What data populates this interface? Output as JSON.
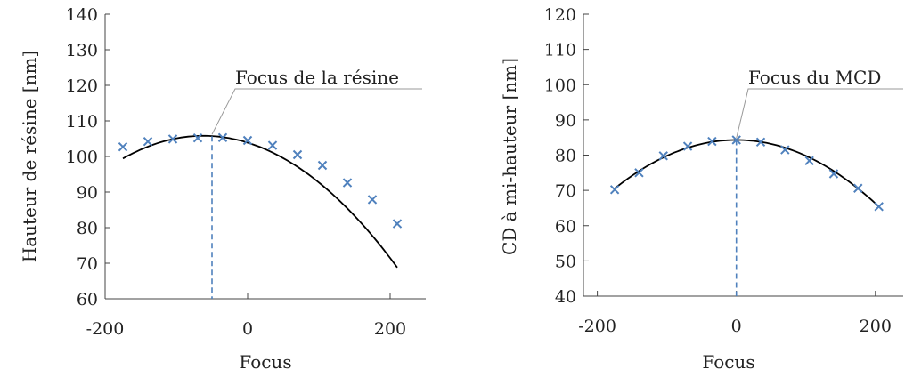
{
  "chart_data": [
    {
      "type": "scatter",
      "xlabel": "Focus",
      "ylabel": "Hauteur de résine [nm]",
      "xlim": [
        -200,
        250
      ],
      "ylim": [
        60,
        140
      ],
      "xticks": [
        -200,
        0,
        200
      ],
      "yticks": [
        60,
        70,
        80,
        90,
        100,
        110,
        120,
        130,
        140
      ],
      "marker_color": "#4f81bd",
      "fit_color": "#000000",
      "series": [
        {
          "marker": "x",
          "x": [
            -175,
            -140,
            -105,
            -70,
            -35,
            0,
            35,
            70,
            105,
            140,
            175,
            210
          ],
          "y": [
            102.7,
            104.2,
            104.9,
            105.2,
            105.3,
            104.5,
            103.1,
            100.5,
            97.5,
            92.6,
            87.9,
            81.1
          ]
        }
      ],
      "fit": {
        "type": "quadratic",
        "a": -0.0005,
        "vertex_x": -62,
        "vertex_y": 105.8
      },
      "annotation": {
        "text": "Focus de la résine",
        "x": -50,
        "y": 105.7
      }
    },
    {
      "type": "scatter",
      "xlabel": "Focus",
      "ylabel": "CD à mi-hauteur [nm]",
      "xlim": [
        -220,
        240
      ],
      "ylim": [
        40,
        120
      ],
      "xticks": [
        -200,
        0,
        200
      ],
      "yticks": [
        40,
        50,
        60,
        70,
        80,
        90,
        100,
        110,
        120
      ],
      "marker_color": "#4f81bd",
      "fit_color": "#000000",
      "series": [
        {
          "marker": "x",
          "x": [
            -175,
            -140,
            -105,
            -70,
            -35,
            0,
            35,
            70,
            105,
            140,
            175,
            205
          ],
          "y": [
            70.2,
            75.0,
            79.8,
            82.5,
            83.9,
            84.3,
            83.7,
            81.5,
            78.4,
            74.7,
            70.6,
            65.4
          ]
        }
      ],
      "fit": {
        "type": "quadratic",
        "a": -0.00045,
        "vertex_x": 0,
        "vertex_y": 84.3
      },
      "annotation": {
        "text": "Focus du MCD",
        "x": 0,
        "y": 84.3
      }
    }
  ]
}
